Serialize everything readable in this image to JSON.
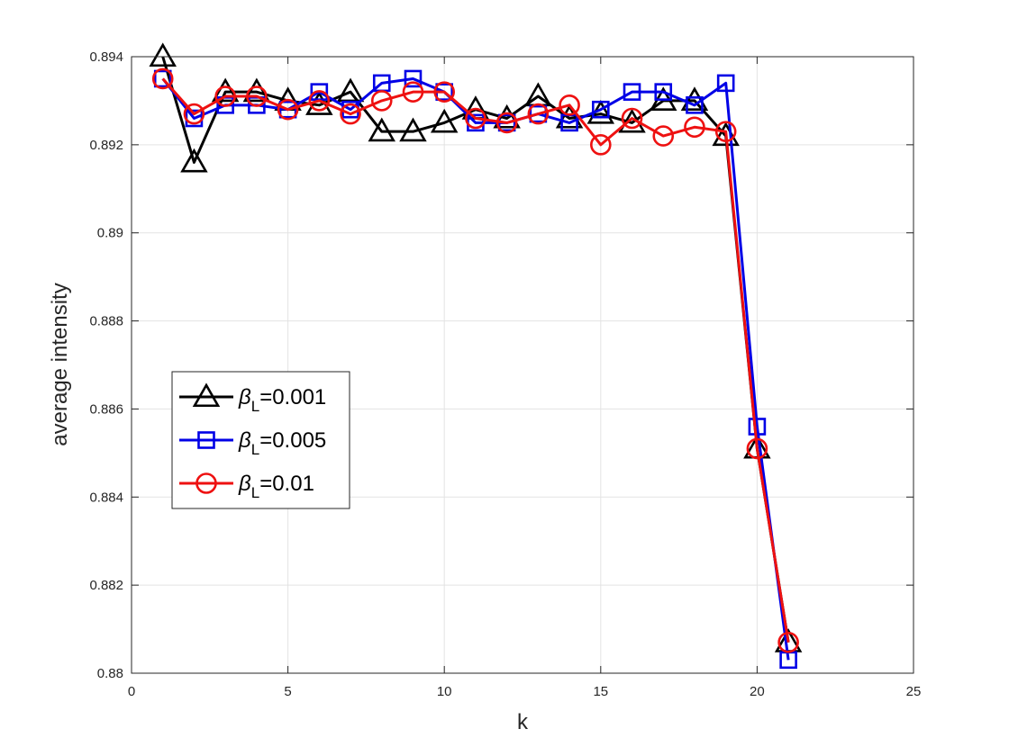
{
  "chart_data": {
    "type": "line",
    "xlabel": "k",
    "ylabel": "average intensity",
    "xlim": [
      0,
      25
    ],
    "ylim": [
      0.88,
      0.894
    ],
    "xticks": [
      "0",
      "5",
      "10",
      "15",
      "20",
      "25"
    ],
    "yticks": [
      "0.88",
      "0.882",
      "0.884",
      "0.886",
      "0.888",
      "0.89",
      "0.892",
      "0.894"
    ],
    "grid": true,
    "legend_position": "middle-left",
    "x": [
      1,
      2,
      3,
      4,
      5,
      6,
      7,
      8,
      9,
      10,
      11,
      12,
      13,
      14,
      15,
      16,
      17,
      18,
      19,
      20,
      21
    ],
    "series": [
      {
        "name": "βL=0.001",
        "legend_main": "β",
        "legend_sub": "L",
        "legend_rest": "=0.001",
        "color": "#000000",
        "marker": "triangle",
        "values": [
          0.894,
          0.8916,
          0.8932,
          0.8932,
          0.893,
          0.8929,
          0.8932,
          0.8923,
          0.8923,
          0.8925,
          0.8928,
          0.8926,
          0.8931,
          0.8926,
          0.8927,
          0.8925,
          0.893,
          0.893,
          0.8922,
          0.8851,
          0.8807
        ]
      },
      {
        "name": "βL=0.005",
        "legend_main": "β",
        "legend_sub": "L",
        "legend_rest": "=0.005",
        "color": "#0000e6",
        "marker": "square",
        "values": [
          0.8935,
          0.8926,
          0.8929,
          0.8929,
          0.8928,
          0.8932,
          0.8928,
          0.8934,
          0.8935,
          0.8932,
          0.8925,
          0.8925,
          0.8927,
          0.8925,
          0.8928,
          0.8932,
          0.8932,
          0.8929,
          0.8934,
          0.8856,
          0.8803
        ]
      },
      {
        "name": "βL=0.01",
        "legend_main": "β",
        "legend_sub": "L",
        "legend_rest": "=0.01",
        "color": "#ee1111",
        "marker": "circle",
        "values": [
          0.8935,
          0.8927,
          0.8931,
          0.8931,
          0.8928,
          0.893,
          0.8927,
          0.893,
          0.8932,
          0.8932,
          0.8926,
          0.8925,
          0.8927,
          0.8929,
          0.892,
          0.8926,
          0.8922,
          0.8924,
          0.8923,
          0.8851,
          0.8807
        ]
      }
    ]
  }
}
